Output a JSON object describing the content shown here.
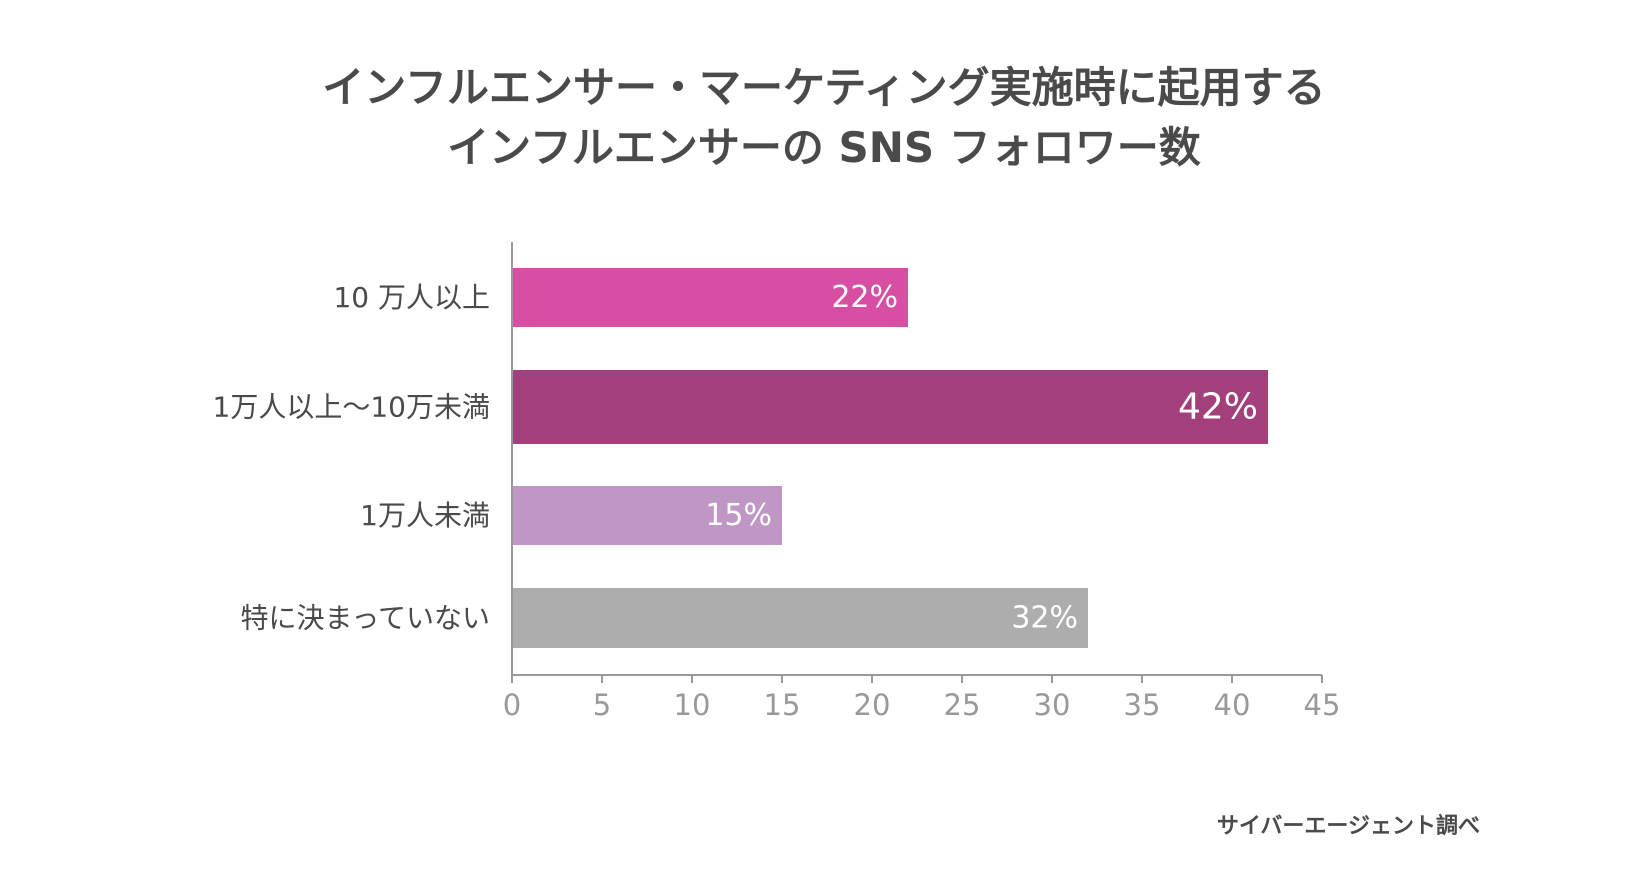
{
  "title_lines": [
    "インフルエンサー・マーケティング実施時に起用する",
    "インフルエンサーの SNS フォロワー数"
  ],
  "source": "サイバーエージェント調べ",
  "chart_data": {
    "type": "bar",
    "orientation": "horizontal",
    "title": "インフルエンサー・マーケティング実施時に起用する インフルエンサーの SNS フォロワー数",
    "categories": [
      "10 万人以上",
      "1万人以上〜10万未満",
      "1万人未満",
      "特に決まっていない"
    ],
    "values": [
      22,
      42,
      15,
      32
    ],
    "data_labels": [
      "22%",
      "42%",
      "15%",
      "32%"
    ],
    "colors": [
      "#d74fa3",
      "#a33f7b",
      "#c096c4",
      "#adadad"
    ],
    "xlim": [
      0,
      45
    ],
    "xticks": [
      0,
      5,
      10,
      15,
      20,
      25,
      30,
      35,
      40,
      45
    ],
    "xlabel": "",
    "ylabel": "",
    "grid": false,
    "legend": "none"
  }
}
